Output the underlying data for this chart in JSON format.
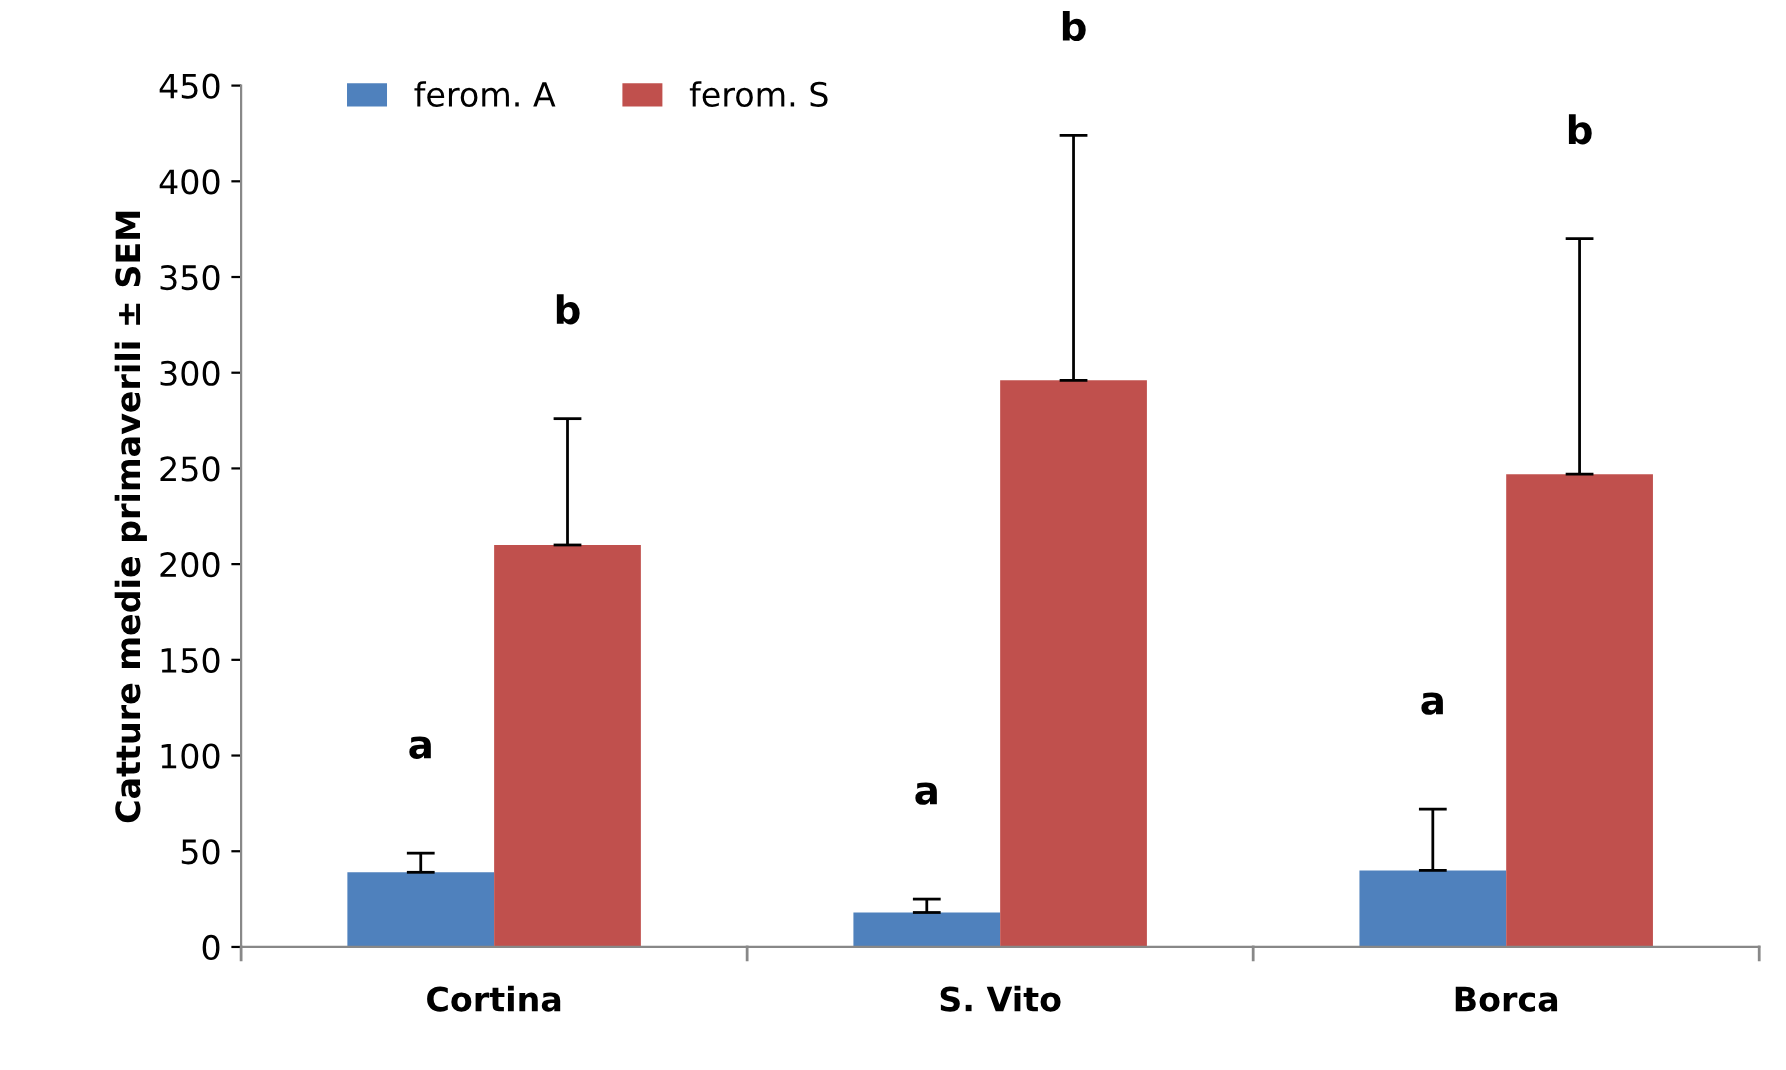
{
  "chart_data": {
    "type": "bar",
    "ylabel": "Catture medie primaverili ± SEM",
    "categories": [
      "Cortina",
      "S. Vito",
      "Borca"
    ],
    "series": [
      {
        "name": "ferom. A",
        "color": "#4f81bd",
        "values": [
          39,
          18,
          40
        ],
        "errors": [
          [
            39,
            49
          ],
          [
            18,
            25
          ],
          [
            40,
            72
          ]
        ]
      },
      {
        "name": "ferom. S",
        "color": "#c0504d",
        "values": [
          210,
          296,
          247
        ],
        "errors": [
          [
            210,
            276
          ],
          [
            296,
            424
          ],
          [
            247,
            370
          ]
        ]
      }
    ],
    "ylim": [
      0,
      450
    ],
    "yticks": [
      0,
      50,
      100,
      150,
      200,
      250,
      300,
      350,
      400,
      450
    ],
    "grid": false,
    "legend": "top left",
    "annotations": [
      "a",
      "b",
      "a",
      "b",
      "a",
      "b"
    ]
  }
}
